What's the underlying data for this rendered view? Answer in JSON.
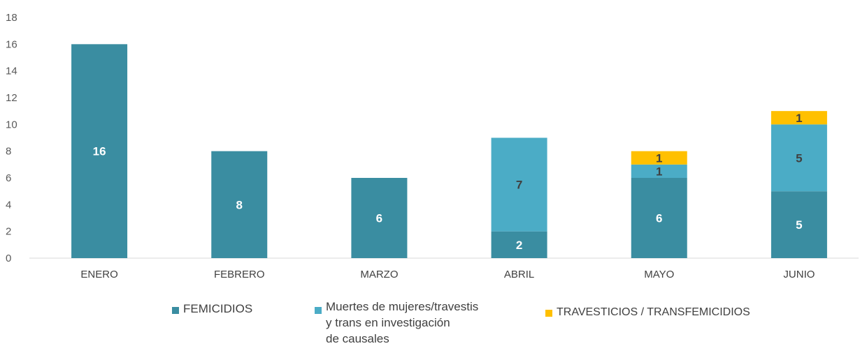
{
  "chart_data": {
    "type": "bar",
    "stacked": true,
    "categories": [
      "ENERO",
      "FEBRERO",
      "MARZO",
      "ABRIL",
      "MAYO",
      "JUNIO"
    ],
    "series": [
      {
        "name": "FEMICIDIOS",
        "color": "#3A8DA1",
        "values": [
          16,
          8,
          6,
          2,
          6,
          5
        ]
      },
      {
        "name": "Muertes de mujeres/travestis\ny trans en investigación\nde causales",
        "color": "#4BACC6",
        "values": [
          0,
          0,
          0,
          7,
          1,
          5
        ]
      },
      {
        "name": "TRAVESTICIOS / TRANSFEMICIDIOS",
        "color": "#FFC000",
        "values": [
          0,
          0,
          0,
          0,
          1,
          1
        ]
      }
    ],
    "ylim": [
      0,
      18
    ],
    "yticks": [
      "0",
      "2",
      "4",
      "6",
      "8",
      "10",
      "12",
      "14",
      "16",
      "18"
    ],
    "grid": false,
    "legend_position": "bottom"
  }
}
